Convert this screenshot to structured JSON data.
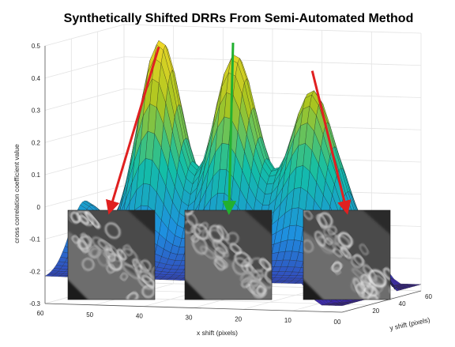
{
  "chart_data": {
    "type": "surface",
    "title": "Synthetically Shifted DRRs From Semi-Automated Method",
    "xlabel": "x shift (pixels)",
    "ylabel": "y shift (pixels)",
    "zlabel": "cross correlation coefficient value",
    "xlim": [
      0,
      60
    ],
    "ylim": [
      0,
      60
    ],
    "zlim": [
      -0.3,
      0.5
    ],
    "x_ticks": [
      "60",
      "50",
      "40",
      "30",
      "20",
      "10",
      "00"
    ],
    "y_ticks": [
      "20",
      "40",
      "60"
    ],
    "z_ticks": [
      "0.5",
      "0.4",
      "0.3",
      "0.2",
      "0.1",
      "0",
      "-0.1",
      "-0.2",
      "-0.3"
    ],
    "grid": true,
    "colormap": "parula",
    "peaks": [
      {
        "x": 45,
        "y": 30,
        "z": 0.47
      },
      {
        "x": 30,
        "y": 30,
        "z": 0.49
      },
      {
        "x": 14,
        "y": 30,
        "z": 0.41
      }
    ],
    "annotations": [
      {
        "color": "#e02020",
        "points_to": "left DRR inset"
      },
      {
        "color": "#22b030",
        "points_to": "middle DRR inset"
      },
      {
        "color": "#e02020",
        "points_to": "right DRR inset"
      }
    ],
    "insets": [
      "left DRR inset",
      "middle DRR inset",
      "right DRR inset"
    ]
  }
}
